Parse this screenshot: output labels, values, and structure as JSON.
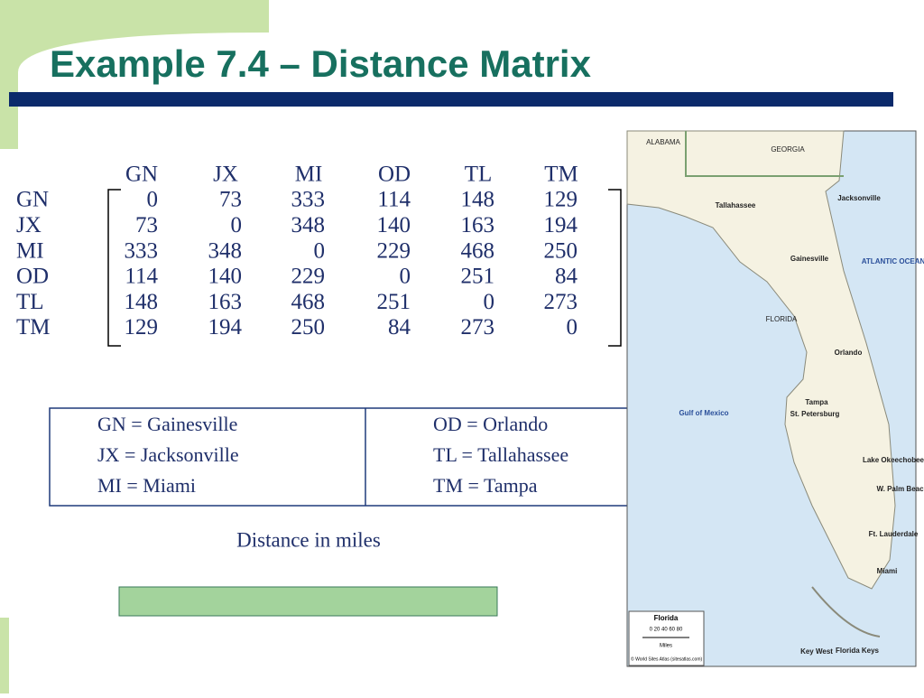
{
  "title": "Example 7.4 – Distance Matrix",
  "matrix": {
    "columns": [
      "GN",
      "JX",
      "MI",
      "OD",
      "TL",
      "TM"
    ],
    "rows": [
      {
        "label": "GN",
        "values": [
          0,
          73,
          333,
          114,
          148,
          129
        ]
      },
      {
        "label": "JX",
        "values": [
          73,
          0,
          348,
          140,
          163,
          194
        ]
      },
      {
        "label": "MI",
        "values": [
          333,
          348,
          0,
          229,
          468,
          250
        ]
      },
      {
        "label": "OD",
        "values": [
          114,
          140,
          229,
          0,
          251,
          84
        ]
      },
      {
        "label": "TL",
        "values": [
          148,
          163,
          468,
          251,
          0,
          273
        ]
      },
      {
        "label": "TM",
        "values": [
          129,
          194,
          250,
          84,
          273,
          0
        ]
      }
    ]
  },
  "legend": [
    [
      "GN = Gainesville",
      "OD = Orlando"
    ],
    [
      "JX = Jacksonville",
      "TL = Tallahassee"
    ],
    [
      "MI = Miami",
      "TM = Tampa"
    ]
  ],
  "caption": "Distance in miles",
  "map": {
    "labels": [
      "ALABAMA",
      "GEORGIA",
      "Tallahassee",
      "Jacksonville",
      "Gainesville",
      "ATLANTIC OCEAN",
      "FLORIDA",
      "Orlando",
      "Tampa",
      "St. Petersburg",
      "Gulf of Mexico",
      "Lake Okeechobee",
      "W. Palm Beach",
      "Ft. Lauderdale",
      "Miami",
      "Key West",
      "Florida Keys"
    ],
    "legend_title": "Florida",
    "scale": "0  20  40  60  80",
    "scale_unit": "Miles",
    "credit": "© World Sites Atlas (sitesatlas.com)"
  }
}
